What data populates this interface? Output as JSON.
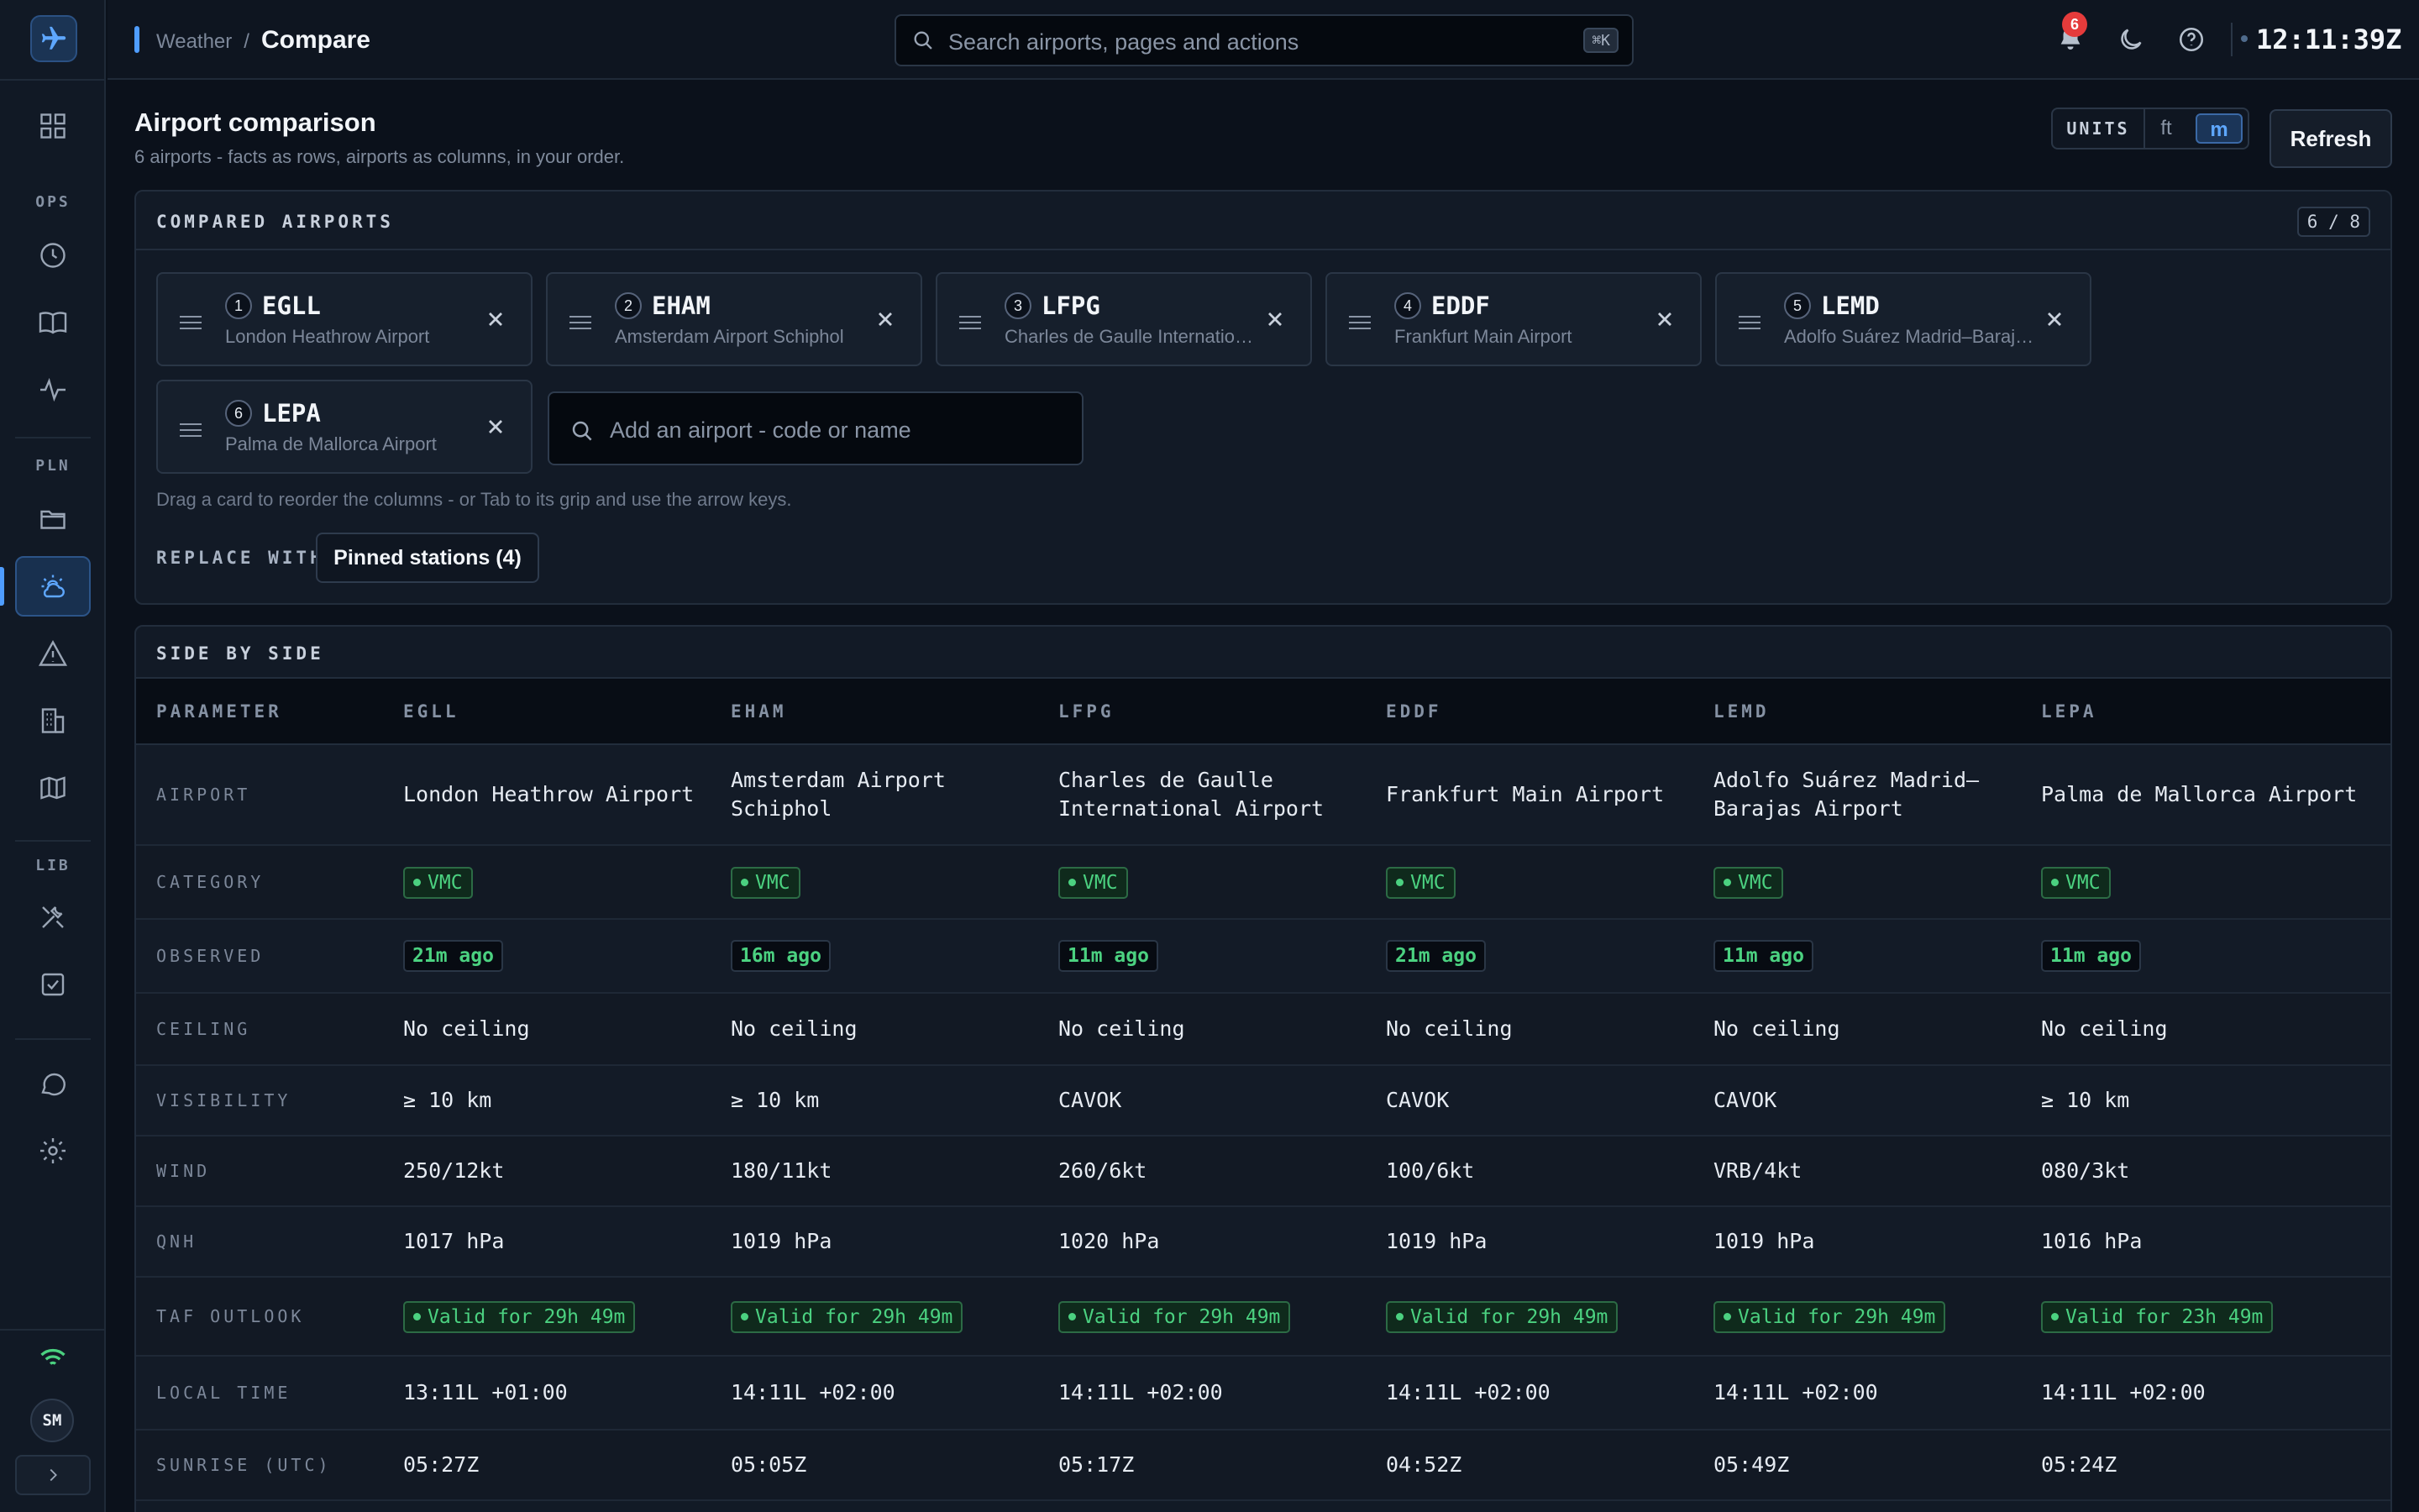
{
  "sidebar": {
    "sections": {
      "ops": "OPS",
      "pln": "PLN",
      "lib": "LIB"
    },
    "user_initials": "SM"
  },
  "header": {
    "breadcrumb_parent": "Weather",
    "breadcrumb_sep": "/",
    "breadcrumb_current": "Compare",
    "search_placeholder": "Search airports, pages and actions",
    "search_shortcut": "⌘K",
    "notification_count": "6",
    "utc_clock": "12:11:39Z"
  },
  "page": {
    "title": "Airport comparison",
    "subtitle": "6 airports - facts as rows, airports as columns, in your order.",
    "units_label": "UNITS",
    "units_options": [
      "ft",
      "m"
    ],
    "units_selected": "m",
    "refresh_label": "Refresh"
  },
  "compared": {
    "heading": "COMPARED AIRPORTS",
    "count": "6 / 8",
    "cards": [
      {
        "num": "1",
        "code": "EGLL",
        "name": "London Heathrow Airport"
      },
      {
        "num": "2",
        "code": "EHAM",
        "name": "Amsterdam Airport Schiphol"
      },
      {
        "num": "3",
        "code": "LFPG",
        "name": "Charles de Gaulle International Airport"
      },
      {
        "num": "4",
        "code": "EDDF",
        "name": "Frankfurt Main Airport"
      },
      {
        "num": "5",
        "code": "LEMD",
        "name": "Adolfo Suárez Madrid–Barajas Airport"
      },
      {
        "num": "6",
        "code": "LEPA",
        "name": "Palma de Mallorca Airport"
      }
    ],
    "add_placeholder": "Add an airport - code or name",
    "hint": "Drag a card to reorder the columns - or Tab to its grip and use the arrow keys.",
    "replace_label": "REPLACE WITH",
    "pinned_button": "Pinned stations (4)"
  },
  "side_by_side": {
    "heading": "SIDE BY SIDE",
    "param_header": "PARAMETER",
    "columns": [
      "EGLL",
      "EHAM",
      "LFPG",
      "EDDF",
      "LEMD",
      "LEPA"
    ],
    "rows": [
      {
        "label": "AIRPORT",
        "type": "text",
        "values": [
          "London Heathrow Airport",
          "Amsterdam Airport Schiphol",
          "Charles de Gaulle International Airport",
          "Frankfurt Main Airport",
          "Adolfo Suárez Madrid–Barajas Airport",
          "Palma de Mallorca Airport"
        ]
      },
      {
        "label": "CATEGORY",
        "type": "pill",
        "values": [
          "VMC",
          "VMC",
          "VMC",
          "VMC",
          "VMC",
          "VMC"
        ]
      },
      {
        "label": "OBSERVED",
        "type": "obs",
        "values": [
          "21m ago",
          "16m ago",
          "11m ago",
          "21m ago",
          "11m ago",
          "11m ago"
        ]
      },
      {
        "label": "CEILING",
        "type": "text",
        "values": [
          "No ceiling",
          "No ceiling",
          "No ceiling",
          "No ceiling",
          "No ceiling",
          "No ceiling"
        ]
      },
      {
        "label": "VISIBILITY",
        "type": "text",
        "values": [
          "≥ 10 km",
          "≥ 10 km",
          "CAVOK",
          "CAVOK",
          "CAVOK",
          "≥ 10 km"
        ]
      },
      {
        "label": "WIND",
        "type": "text",
        "values": [
          "250/12kt",
          "180/11kt",
          "260/6kt",
          "100/6kt",
          "VRB/4kt",
          "080/3kt"
        ]
      },
      {
        "label": "QNH",
        "type": "text",
        "values": [
          "1017 hPa",
          "1019 hPa",
          "1020 hPa",
          "1019 hPa",
          "1019 hPa",
          "1016 hPa"
        ]
      },
      {
        "label": "TAF OUTLOOK",
        "type": "pill",
        "values": [
          "Valid for 29h 49m",
          "Valid for 29h 49m",
          "Valid for 29h 49m",
          "Valid for 29h 49m",
          "Valid for 29h 49m",
          "Valid for 23h 49m"
        ]
      },
      {
        "label": "LOCAL TIME",
        "type": "text",
        "values": [
          "13:11L +01:00",
          "14:11L +02:00",
          "14:11L +02:00",
          "14:11L +02:00",
          "14:11L +02:00",
          "14:11L +02:00"
        ]
      },
      {
        "label": "SUNRISE (UTC)",
        "type": "text",
        "values": [
          "05:27Z",
          "05:05Z",
          "05:17Z",
          "04:52Z",
          "05:49Z",
          "05:24Z"
        ]
      }
    ]
  },
  "colors": {
    "accent": "#4f9dff",
    "vmc_green": "#4bd180",
    "alert_red": "#e53b3b"
  }
}
